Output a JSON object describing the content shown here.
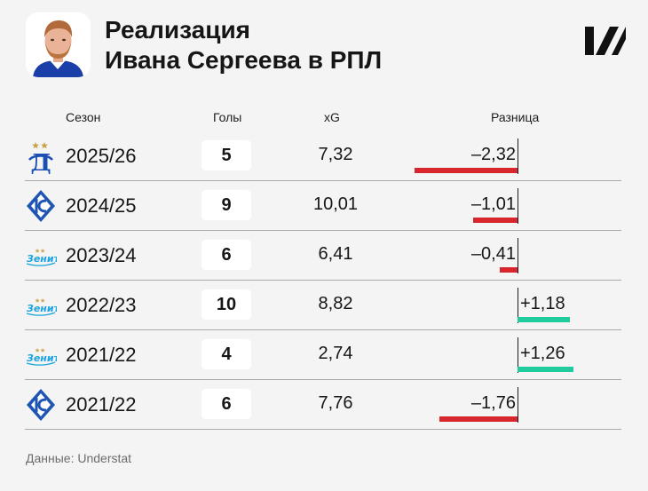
{
  "header": {
    "title_line1": "Реализация",
    "title_line2": "Ивана Сергеева в РПЛ",
    "avatar": "player-photo",
    "logo": "sports-ru-logo"
  },
  "columns": {
    "season": "Сезон",
    "goals": "Голы",
    "xg": "xG",
    "diff": "Разница"
  },
  "rows": [
    {
      "club_icon": "dynamo-icon",
      "season": "2025/26",
      "goals": "5",
      "xg": "7,32",
      "diff": "–2,32"
    },
    {
      "club_icon": "krylia-icon",
      "season": "2024/25",
      "goals": "9",
      "xg": "10,01",
      "diff": "–1,01"
    },
    {
      "club_icon": "zenit-icon",
      "season": "2023/24",
      "goals": "6",
      "xg": "6,41",
      "diff": "–0,41"
    },
    {
      "club_icon": "zenit-icon",
      "season": "2022/23",
      "goals": "10",
      "xg": "8,82",
      "diff": "+1,18"
    },
    {
      "club_icon": "zenit-icon",
      "season": "2021/22",
      "goals": "4",
      "xg": "2,74",
      "diff": "+1,26"
    },
    {
      "club_icon": "krylia-icon",
      "season": "2021/22",
      "goals": "6",
      "xg": "7,76",
      "diff": "–1,76"
    }
  ],
  "footer": "Данные: Understat",
  "colors": {
    "negative": "#d8262e",
    "positive": "#20cc9b",
    "background": "#f4f4f4"
  },
  "chart_data": {
    "type": "table",
    "categories": [
      "2025/26",
      "2024/25",
      "2023/24",
      "2022/23",
      "2021/22",
      "2021/22"
    ],
    "series": [
      {
        "name": "Голы",
        "values": [
          5,
          9,
          6,
          10,
          4,
          6
        ]
      },
      {
        "name": "xG",
        "values": [
          7.32,
          10.01,
          6.41,
          8.82,
          2.74,
          7.76
        ]
      },
      {
        "name": "Разница",
        "values": [
          -2.32,
          -1.01,
          -0.41,
          1.18,
          1.26,
          -1.76
        ]
      }
    ]
  }
}
